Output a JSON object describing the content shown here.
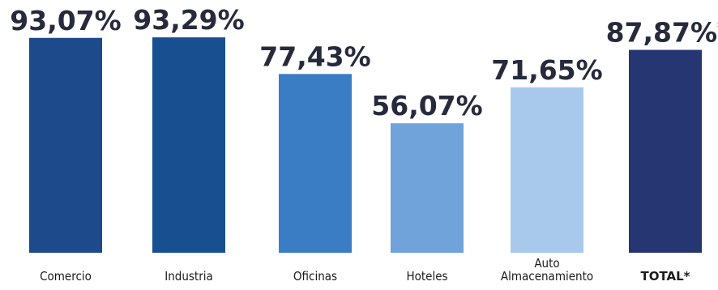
{
  "chart_data": {
    "type": "bar",
    "title": "",
    "xlabel": "",
    "ylabel": "",
    "ylim": [
      0,
      100
    ],
    "grid": false,
    "bars": [
      {
        "category_lines": [
          "Comercio"
        ],
        "value": 93.07,
        "value_label": "93,07%",
        "color": "#1c4a8a",
        "emphasis": false
      },
      {
        "category_lines": [
          "Industria"
        ],
        "value": 93.29,
        "value_label": "93,29%",
        "color": "#174f90",
        "emphasis": false
      },
      {
        "category_lines": [
          "Oficinas"
        ],
        "value": 77.43,
        "value_label": "77,43%",
        "color": "#3b7dc4",
        "emphasis": false
      },
      {
        "category_lines": [
          "Hoteles"
        ],
        "value": 56.07,
        "value_label": "56,07%",
        "color": "#6fa3da",
        "emphasis": false
      },
      {
        "category_lines": [
          "Auto",
          "Almacenamiento"
        ],
        "value": 71.65,
        "value_label": "71,65%",
        "color": "#a8c9ec",
        "emphasis": false
      },
      {
        "category_lines": [
          "TOTAL*"
        ],
        "value": 87.87,
        "value_label": "87,87%",
        "value_suffix": "*",
        "color": "#263673",
        "emphasis": true
      }
    ]
  }
}
